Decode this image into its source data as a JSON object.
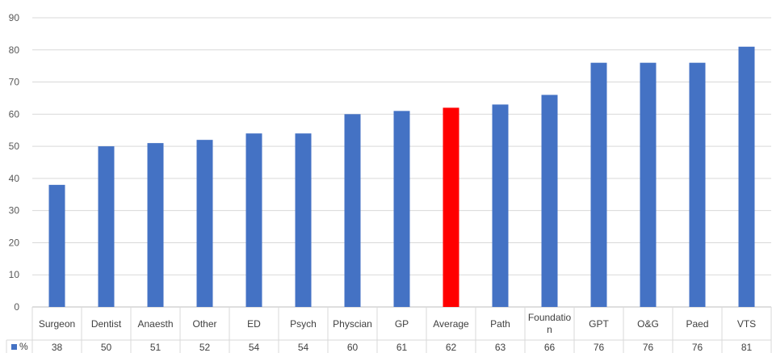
{
  "chart_data": {
    "type": "bar",
    "title": "",
    "xlabel": "",
    "ylabel": "",
    "ylim": [
      0,
      90
    ],
    "yticks": [
      0,
      10,
      20,
      30,
      40,
      50,
      60,
      70,
      80,
      90
    ],
    "grid": true,
    "legend": "data-table",
    "categories": [
      "Surgeon",
      "Dentist",
      "Anaesth",
      "Other",
      "ED",
      "Psych",
      "Physcian",
      "GP",
      "Average",
      "Path",
      "Foundation",
      "GPT",
      "O&G",
      "Paed",
      "VTS"
    ],
    "category_label_lines": [
      [
        "Surgeon"
      ],
      [
        "Dentist"
      ],
      [
        "Anaesth"
      ],
      [
        "Other"
      ],
      [
        "ED"
      ],
      [
        "Psych"
      ],
      [
        "Physcian"
      ],
      [
        "GP"
      ],
      [
        "Average"
      ],
      [
        "Path"
      ],
      [
        "Foundatio",
        "n"
      ],
      [
        "GPT"
      ],
      [
        "O&G"
      ],
      [
        "Paed"
      ],
      [
        "VTS"
      ]
    ],
    "series": [
      {
        "name": "%",
        "color": "#4472C4",
        "values": [
          38,
          50,
          51,
          52,
          54,
          54,
          60,
          61,
          62,
          63,
          66,
          76,
          76,
          76,
          81
        ],
        "highlight": {
          "category": "Average",
          "color": "#FF0000"
        }
      }
    ]
  }
}
